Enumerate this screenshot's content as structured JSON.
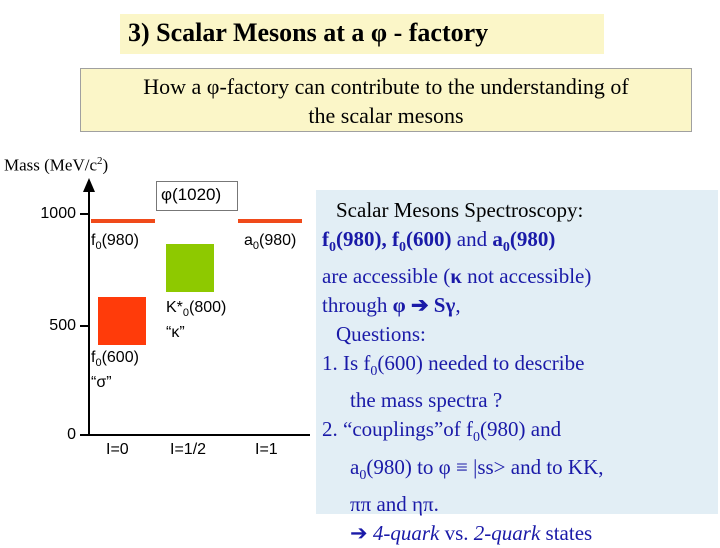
{
  "title": "3) Scalar Mesons at a φ - factory",
  "subtitle": {
    "line1": "How a φ-factory can contribute to the understanding of",
    "line2": "the scalar mesons"
  },
  "diagram": {
    "y_axis_label": "Mass (MeV/c",
    "y_axis_label_sup": "2",
    "y_axis_label_close": ")",
    "ticks": [
      "1000",
      "500",
      "0"
    ],
    "phi_label": "φ(1020)",
    "f0_980": {
      "base": "f",
      "sub": "0",
      "mass": "(980)"
    },
    "a0_980": {
      "base": "a",
      "sub": "0",
      "mass": "(980)"
    },
    "kstar": {
      "base": "K*",
      "sub": "0",
      "mass": "(800)",
      "alias": "“κ”"
    },
    "f0_600": {
      "base": "f",
      "sub": "0",
      "mass": "(600)",
      "alias": "“σ”"
    },
    "isospin": [
      "I=0",
      "I=1/2",
      "I=1"
    ],
    "colors": {
      "red": "#ff3b0a",
      "green": "#8ec900",
      "red_line": "#f04a1a"
    }
  },
  "panel": {
    "heading": "Scalar Mesons Spectroscopy:",
    "l2_f0_980": "f",
    "l2_sub0": "0",
    "l2_m980": "(980), ",
    "l2_f0_600": "f",
    "l2_sub1": "0",
    "l2_m600": "(600)",
    "l2_and": " and ",
    "l2_a0": "a",
    "l2_sub2": "0",
    "l2_ma": "(980)",
    "l3_a": "are accessible (",
    "l3_kappa": "κ",
    "l3_b": " not accessible)",
    "l4_a": "through ",
    "l4_phi": "φ",
    "l4_arrow": " ➔ ",
    "l4_sg": "Sγ",
    "l4_b": ",",
    "questions": "Questions:",
    "q1_a": "1. Is f",
    "q1_sub": "0",
    "q1_b": "(600) needed to describe",
    "q1_c": "the mass spectra ?",
    "q2_a": "2. “couplings”of f",
    "q2_sub": "0",
    "q2_b": "(980) and",
    "q2_c": "a",
    "q2_sub2": "0",
    "q2_d": "(980) to φ ≡ |ss> and to KK,",
    "q2_e": "ππ and ηπ.",
    "concl_arrow": "➔ ",
    "concl_a": "4-quark",
    "concl_vs": " vs. ",
    "concl_b": "2-quark",
    "concl_c": " states"
  }
}
